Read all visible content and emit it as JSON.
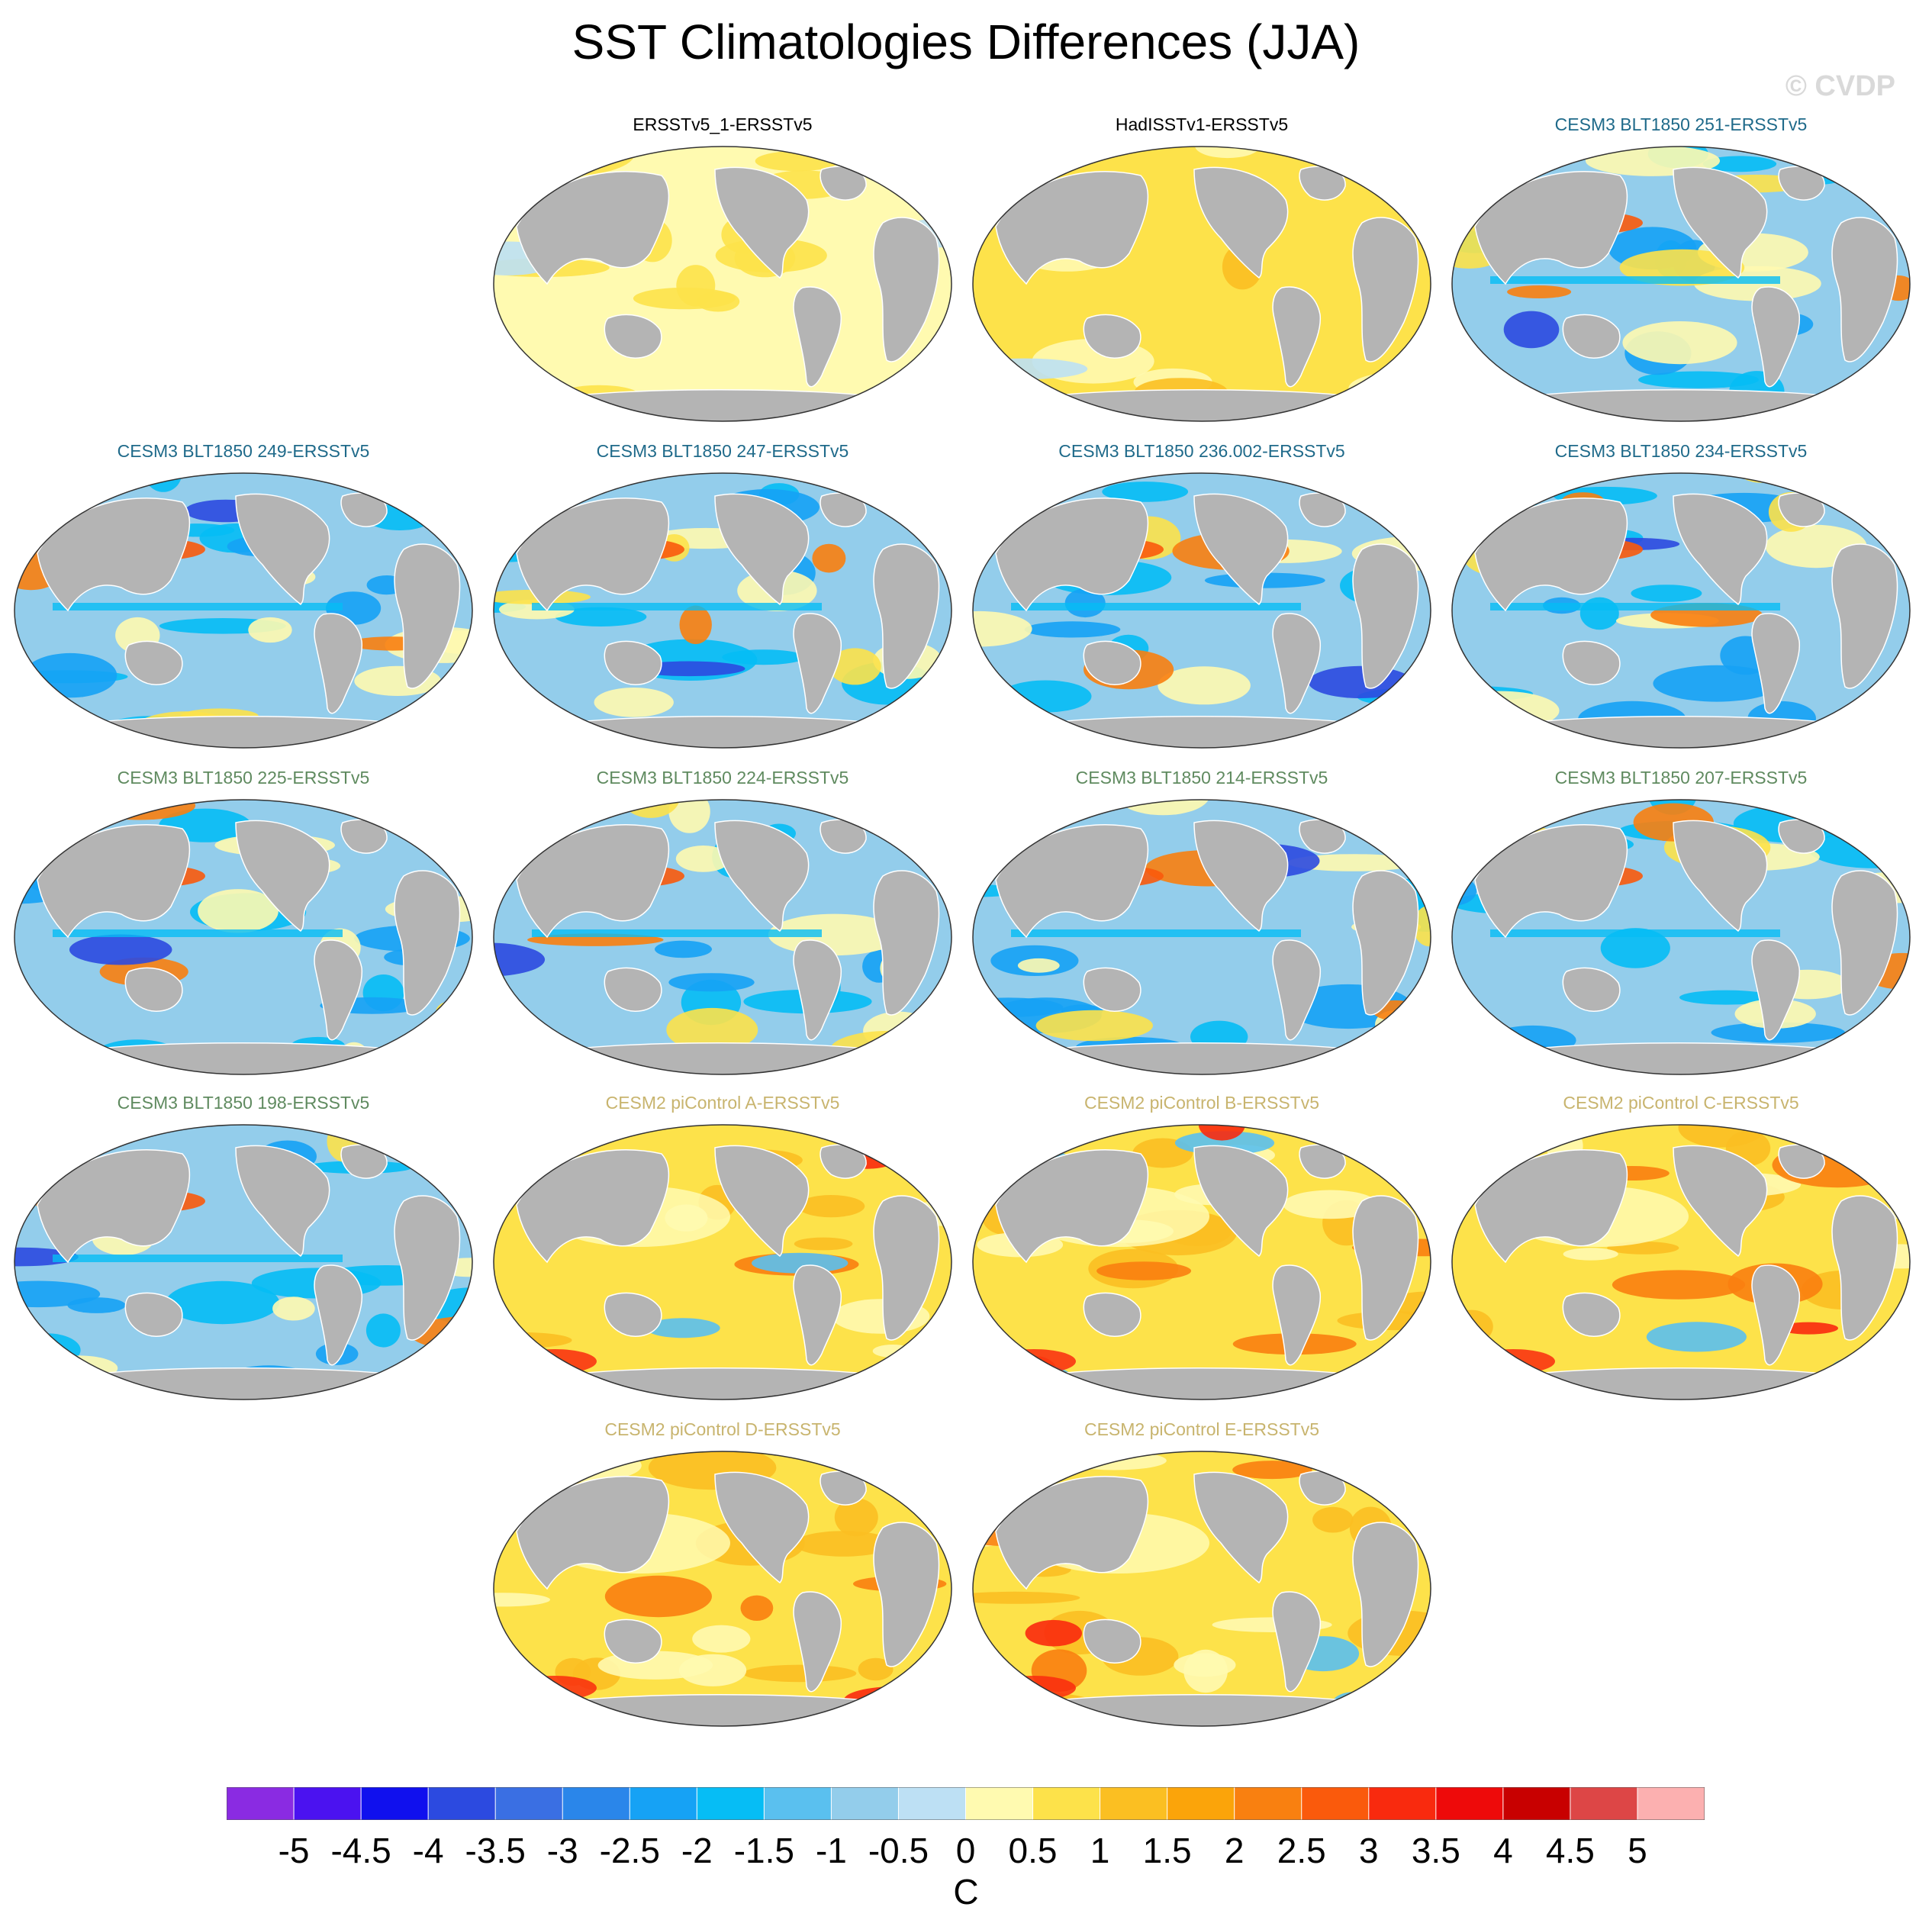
{
  "title": "SST Climatologies Differences (JJA)",
  "watermark": "© CVDP",
  "colors": {
    "land": "#b4b4b4",
    "title_obs": "#000000",
    "title_cesm3_a": "#1f6a8a",
    "title_cesm3_b": "#5f8a5f",
    "title_cesm2": "#c8b46e"
  },
  "panels": [
    {
      "title": "ERSSTv5_1-ERSSTv5",
      "group": "obs",
      "bias": "warm_light"
    },
    {
      "title": "HadISSTv1-ERSSTv5",
      "group": "obs",
      "bias": "warm_uniform"
    },
    {
      "title": "CESM3 BLT1850 251-ERSSTv5",
      "group": "cesm3_a",
      "bias": "cool"
    },
    {
      "title": "CESM3 BLT1850 249-ERSSTv5",
      "group": "cesm3_a",
      "bias": "cool"
    },
    {
      "title": "CESM3 BLT1850 247-ERSSTv5",
      "group": "cesm3_a",
      "bias": "cool"
    },
    {
      "title": "CESM3 BLT1850 236.002-ERSSTv5",
      "group": "cesm3_a",
      "bias": "cool"
    },
    {
      "title": "CESM3 BLT1850 234-ERSSTv5",
      "group": "cesm3_a",
      "bias": "cool"
    },
    {
      "title": "CESM3 BLT1850 225-ERSSTv5",
      "group": "cesm3_b",
      "bias": "cool"
    },
    {
      "title": "CESM3 BLT1850 224-ERSSTv5",
      "group": "cesm3_b",
      "bias": "cool"
    },
    {
      "title": "CESM3 BLT1850 214-ERSSTv5",
      "group": "cesm3_b",
      "bias": "cool"
    },
    {
      "title": "CESM3 BLT1850 207-ERSSTv5",
      "group": "cesm3_b",
      "bias": "cool"
    },
    {
      "title": "CESM3 BLT1850 198-ERSSTv5",
      "group": "cesm3_b",
      "bias": "cool"
    },
    {
      "title": "CESM2 piControl A-ERSSTv5",
      "group": "cesm2",
      "bias": "warm"
    },
    {
      "title": "CESM2 piControl B-ERSSTv5",
      "group": "cesm2",
      "bias": "warm"
    },
    {
      "title": "CESM2 piControl C-ERSSTv5",
      "group": "cesm2",
      "bias": "warm"
    },
    {
      "title": "CESM2 piControl D-ERSSTv5",
      "group": "cesm2",
      "bias": "warm"
    },
    {
      "title": "CESM2 piControl E-ERSSTv5",
      "group": "cesm2",
      "bias": "warm"
    }
  ],
  "colorbar": {
    "units": "C",
    "labels": [
      "-5",
      "-4.5",
      "-4",
      "-3.5",
      "-3",
      "-2.5",
      "-2",
      "-1.5",
      "-1",
      "-0.5",
      "0",
      "0.5",
      "1",
      "1.5",
      "2",
      "2.5",
      "3",
      "3.5",
      "4",
      "4.5",
      "5"
    ],
    "colors": [
      "#8a2be2",
      "#4b12f0",
      "#1010ee",
      "#2c4ae0",
      "#3a6fe3",
      "#2a86ea",
      "#16a2f5",
      "#06bdf5",
      "#5ac0ef",
      "#93cdeb",
      "#bde0f4",
      "#fffab0",
      "#fde24a",
      "#fbbf22",
      "#fba40a",
      "#f98010",
      "#fa5a0c",
      "#f92a0e",
      "#ee0a0a",
      "#c80000",
      "#dd4646",
      "#fcb0b0"
    ]
  }
}
